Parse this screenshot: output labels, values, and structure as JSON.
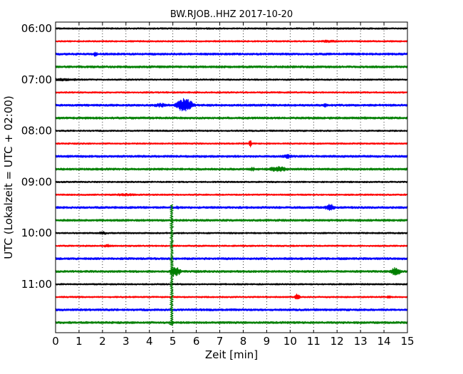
{
  "chart_data": {
    "type": "line",
    "title": "BW.RJOB..HHZ 2017-10-20",
    "xlabel": "Zeit  [min]",
    "ylabel": "UTC (Lokalzeit = UTC + 02:00)",
    "xlim": [
      0,
      15
    ],
    "x_ticks": [
      "0",
      "1",
      "2",
      "3",
      "4",
      "5",
      "6",
      "7",
      "8",
      "9",
      "10",
      "11",
      "12",
      "13",
      "14",
      "15"
    ],
    "y_ticks": [
      "06:00",
      "07:00",
      "08:00",
      "09:00",
      "10:00",
      "11:00"
    ],
    "y_tick_trace_index": [
      0,
      4,
      8,
      12,
      16,
      20
    ],
    "grid": "vertical dotted at each minute",
    "trace_interval_min": 15,
    "trace_colors": [
      "#000000",
      "#ff0000",
      "#0000ff",
      "#007f00"
    ],
    "noise_levels": {
      "#000000": 1.2,
      "#ff0000": 1.2,
      "#0000ff": 1.6,
      "#007f00": 1.6
    },
    "series": [
      {
        "start": "06:00",
        "color": "#000000",
        "events": []
      },
      {
        "start": "06:15",
        "color": "#ff0000",
        "events": [
          {
            "t": 11.7,
            "amp": 2,
            "dur": 1.2
          }
        ]
      },
      {
        "start": "06:30",
        "color": "#0000ff",
        "events": [
          {
            "t": 1.7,
            "amp": 4,
            "dur": 0.2
          }
        ]
      },
      {
        "start": "06:45",
        "color": "#007f00",
        "events": []
      },
      {
        "start": "07:00",
        "color": "#000000",
        "events": [
          {
            "t": 0,
            "amp": 2,
            "dur": 3.8
          }
        ]
      },
      {
        "start": "07:15",
        "color": "#ff0000",
        "events": []
      },
      {
        "start": "07:30",
        "color": "#0000ff",
        "events": [
          {
            "t": 5.5,
            "amp": 10,
            "dur": 0.8
          },
          {
            "t": 4.5,
            "amp": 3,
            "dur": 1
          },
          {
            "t": 11.5,
            "amp": 3,
            "dur": 0.3
          }
        ]
      },
      {
        "start": "07:45",
        "color": "#007f00",
        "events": []
      },
      {
        "start": "08:00",
        "color": "#000000",
        "events": []
      },
      {
        "start": "08:15",
        "color": "#ff0000",
        "events": [
          {
            "t": 8.3,
            "amp": 5,
            "dur": 0.15
          }
        ]
      },
      {
        "start": "08:30",
        "color": "#0000ff",
        "events": [
          {
            "t": 9.9,
            "amp": 3,
            "dur": 0.8
          }
        ]
      },
      {
        "start": "08:45",
        "color": "#007f00",
        "events": [
          {
            "t": 9.5,
            "amp": 4,
            "dur": 1
          },
          {
            "t": 8.4,
            "amp": 3,
            "dur": 0.3
          }
        ]
      },
      {
        "start": "09:00",
        "color": "#000000",
        "events": []
      },
      {
        "start": "09:15",
        "color": "#ff0000",
        "events": [
          {
            "t": 3,
            "amp": 2,
            "dur": 1.5
          }
        ]
      },
      {
        "start": "09:30",
        "color": "#0000ff",
        "events": [
          {
            "t": 11.7,
            "amp": 5,
            "dur": 0.5
          },
          {
            "t": 5.2,
            "amp": 3,
            "dur": 0.2
          }
        ]
      },
      {
        "start": "09:45",
        "color": "#007f00",
        "events": []
      },
      {
        "start": "10:00",
        "color": "#000000",
        "events": [
          {
            "t": 2,
            "amp": 2.5,
            "dur": 0.5
          }
        ]
      },
      {
        "start": "10:15",
        "color": "#ff0000",
        "events": [
          {
            "t": 2.2,
            "amp": 2.5,
            "dur": 0.4
          }
        ]
      },
      {
        "start": "10:30",
        "color": "#0000ff",
        "events": []
      },
      {
        "start": "10:45",
        "color": "#007f00",
        "events": [
          {
            "t": 5.1,
            "amp": 8,
            "dur": 0.5
          },
          {
            "t": 14.5,
            "amp": 6,
            "dur": 0.5
          }
        ]
      },
      {
        "start": "11:00",
        "color": "#000000",
        "events": []
      },
      {
        "start": "11:15",
        "color": "#ff0000",
        "events": [
          {
            "t": 10.3,
            "amp": 5,
            "dur": 0.3
          },
          {
            "t": 14.2,
            "amp": 3,
            "dur": 0.2
          }
        ]
      },
      {
        "start": "11:30",
        "color": "#0000ff",
        "events": [
          {
            "t": 7.5,
            "amp": 2,
            "dur": 0.2
          }
        ]
      },
      {
        "start": "11:45",
        "color": "#007f00",
        "events": []
      }
    ],
    "spikes": [
      {
        "t": 4.95,
        "trace_from": 14,
        "trace_to": 23,
        "color": "#007f00"
      }
    ]
  }
}
